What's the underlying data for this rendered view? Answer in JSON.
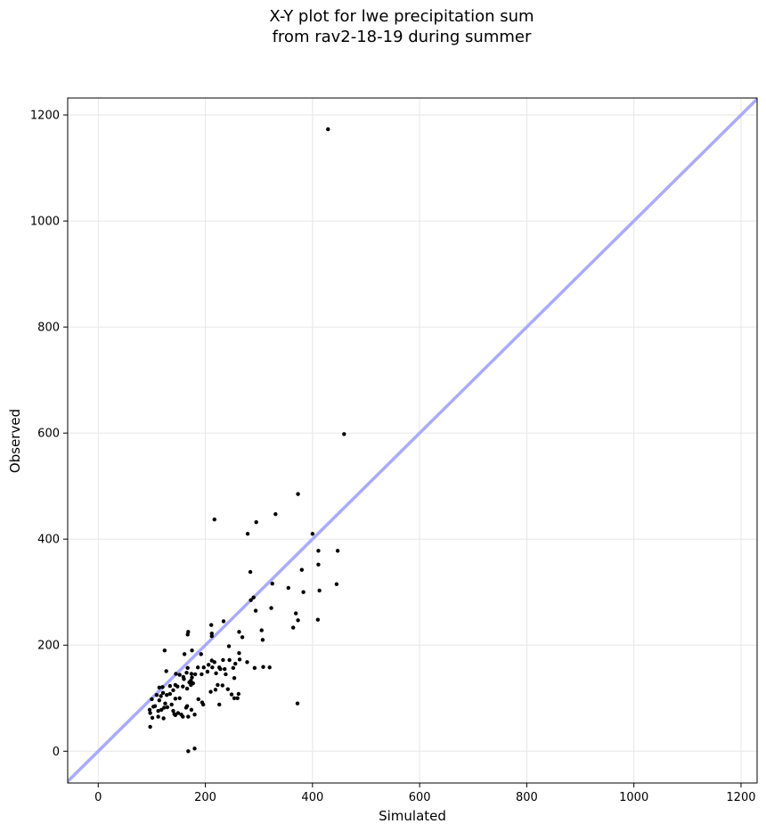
{
  "chart_data": {
    "type": "scatter",
    "title_lines": [
      "X-Y plot for lwe precipitation sum",
      "from rav2-18-19 during summer"
    ],
    "xlabel": "Simulated",
    "ylabel": "Observed",
    "xlim": [
      -57,
      1230
    ],
    "ylim": [
      -60,
      1232
    ],
    "xticks": [
      0,
      200,
      400,
      600,
      800,
      1000,
      1200
    ],
    "yticks": [
      0,
      200,
      400,
      600,
      800,
      1000,
      1200
    ],
    "grid": true,
    "reference_line": {
      "type": "1:1",
      "color": "#aaaaff"
    },
    "marker_color": "#000000",
    "points": [
      [
        429,
        1173
      ],
      [
        459,
        598
      ],
      [
        373,
        485
      ],
      [
        217,
        437
      ],
      [
        331,
        447
      ],
      [
        295,
        432
      ],
      [
        279,
        410
      ],
      [
        400,
        410
      ],
      [
        411,
        378
      ],
      [
        447,
        378
      ],
      [
        380,
        342
      ],
      [
        284,
        338
      ],
      [
        355,
        308
      ],
      [
        445,
        315
      ],
      [
        325,
        316
      ],
      [
        411,
        352
      ],
      [
        413,
        303
      ],
      [
        383,
        300
      ],
      [
        290,
        290
      ],
      [
        285,
        285
      ],
      [
        294,
        265
      ],
      [
        323,
        270
      ],
      [
        369,
        260
      ],
      [
        373,
        247
      ],
      [
        410,
        248
      ],
      [
        364,
        233
      ],
      [
        234,
        245
      ],
      [
        211,
        238
      ],
      [
        305,
        228
      ],
      [
        307,
        210
      ],
      [
        212,
        222
      ],
      [
        263,
        225
      ],
      [
        269,
        215
      ],
      [
        168,
        225
      ],
      [
        167,
        220
      ],
      [
        212,
        217
      ],
      [
        124,
        190
      ],
      [
        175,
        190
      ],
      [
        192,
        183
      ],
      [
        161,
        183
      ],
      [
        244,
        198
      ],
      [
        233,
        172
      ],
      [
        212,
        171
      ],
      [
        245,
        172
      ],
      [
        263,
        185
      ],
      [
        278,
        168
      ],
      [
        292,
        157
      ],
      [
        308,
        159
      ],
      [
        320,
        158
      ],
      [
        252,
        157
      ],
      [
        264,
        173
      ],
      [
        256,
        165
      ],
      [
        206,
        163
      ],
      [
        213,
        158
      ],
      [
        226,
        158
      ],
      [
        236,
        155
      ],
      [
        197,
        158
      ],
      [
        204,
        150
      ],
      [
        217,
        168
      ],
      [
        220,
        147
      ],
      [
        228,
        155
      ],
      [
        186,
        158
      ],
      [
        127,
        151
      ],
      [
        159,
        140
      ],
      [
        165,
        148
      ],
      [
        167,
        157
      ],
      [
        174,
        146
      ],
      [
        175,
        139
      ],
      [
        160,
        136
      ],
      [
        173,
        133
      ],
      [
        170,
        130
      ],
      [
        177,
        128
      ],
      [
        181,
        145
      ],
      [
        145,
        146
      ],
      [
        152,
        144
      ],
      [
        193,
        145
      ],
      [
        144,
        125
      ],
      [
        134,
        123
      ],
      [
        148,
        122
      ],
      [
        158,
        122
      ],
      [
        166,
        118
      ],
      [
        173,
        125
      ],
      [
        120,
        121
      ],
      [
        114,
        120
      ],
      [
        121,
        110
      ],
      [
        128,
        106
      ],
      [
        134,
        108
      ],
      [
        140,
        115
      ],
      [
        117,
        104
      ],
      [
        109,
        106
      ],
      [
        100,
        98
      ],
      [
        152,
        100
      ],
      [
        144,
        99
      ],
      [
        114,
        96
      ],
      [
        125,
        90
      ],
      [
        106,
        85
      ],
      [
        137,
        88
      ],
      [
        129,
        83
      ],
      [
        123,
        82
      ],
      [
        118,
        78
      ],
      [
        112,
        76
      ],
      [
        140,
        76
      ],
      [
        142,
        70
      ],
      [
        149,
        72
      ],
      [
        155,
        69
      ],
      [
        164,
        82
      ],
      [
        174,
        78
      ],
      [
        166,
        85
      ],
      [
        187,
        98
      ],
      [
        194,
        92
      ],
      [
        196,
        88
      ],
      [
        210,
        112
      ],
      [
        219,
        116
      ],
      [
        223,
        125
      ],
      [
        232,
        124
      ],
      [
        242,
        117
      ],
      [
        249,
        107
      ],
      [
        254,
        100
      ],
      [
        260,
        100
      ],
      [
        262,
        108
      ],
      [
        226,
        88
      ],
      [
        180,
        69
      ],
      [
        168,
        65
      ],
      [
        158,
        65
      ],
      [
        144,
        68
      ],
      [
        122,
        62
      ],
      [
        112,
        65
      ],
      [
        101,
        63
      ],
      [
        97,
        72
      ],
      [
        96,
        78
      ],
      [
        103,
        84
      ],
      [
        97,
        46
      ],
      [
        168,
        0
      ],
      [
        180,
        5
      ],
      [
        372,
        90
      ],
      [
        254,
        138
      ],
      [
        238,
        145
      ]
    ]
  }
}
